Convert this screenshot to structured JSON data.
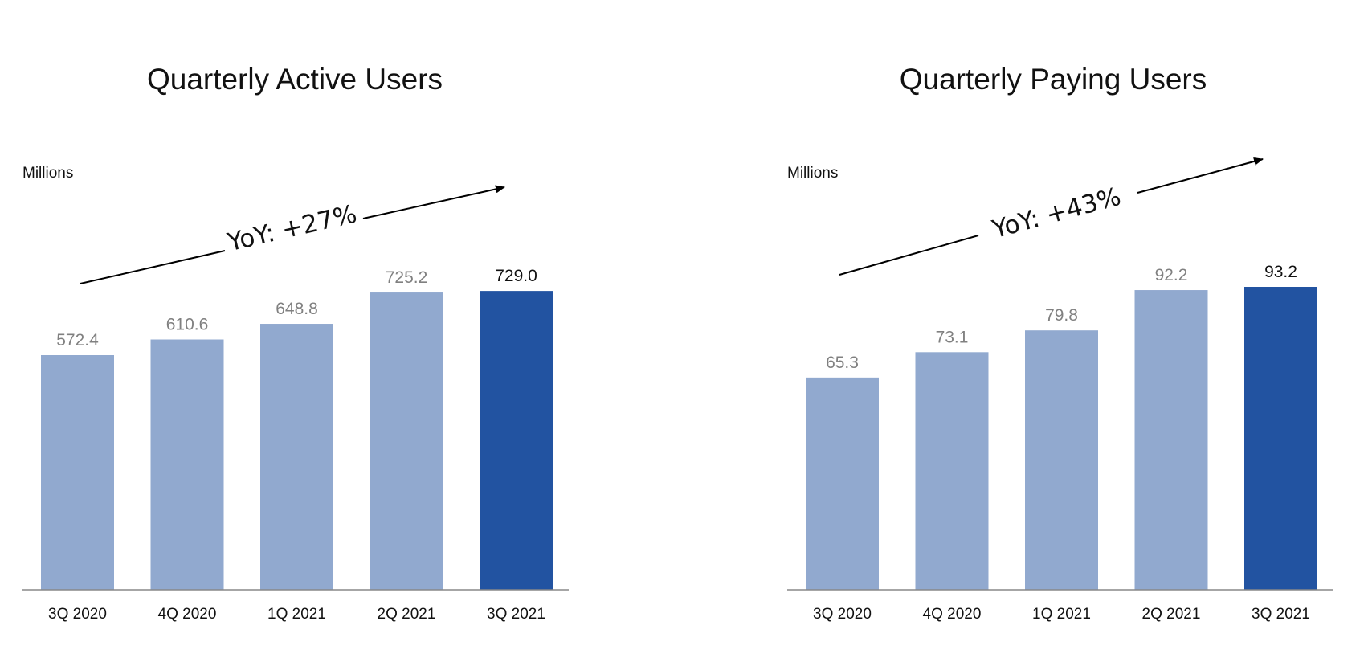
{
  "chart_data": [
    {
      "type": "bar",
      "title": "Quarterly Active Users",
      "ylabel": "Millions",
      "categories": [
        "3Q 2020",
        "4Q 2020",
        "1Q 2021",
        "2Q 2021",
        "3Q 2021"
      ],
      "values": [
        572.4,
        610.6,
        648.8,
        725.2,
        729.0
      ],
      "value_labels": [
        "572.4",
        "610.6",
        "648.8",
        "725.2",
        "729.0"
      ],
      "annotation": "YoY: +27%",
      "ylim": [
        0,
        800
      ],
      "grid": false,
      "colors": {
        "bar": "#91a9cf",
        "highlight": "#2253a1",
        "label": "#808080",
        "highlight_label": "#111111",
        "axis": "#888888"
      }
    },
    {
      "type": "bar",
      "title": "Quarterly Paying Users",
      "ylabel": "Millions",
      "categories": [
        "3Q 2020",
        "4Q 2020",
        "1Q 2021",
        "2Q 2021",
        "3Q 2021"
      ],
      "values": [
        65.3,
        73.1,
        79.8,
        92.2,
        93.2
      ],
      "value_labels": [
        "65.3",
        "73.1",
        "79.8",
        "92.2",
        "93.2"
      ],
      "annotation": "YoY: +43%",
      "ylim": [
        0,
        100
      ],
      "grid": false,
      "colors": {
        "bar": "#91a9cf",
        "highlight": "#2253a1",
        "label": "#808080",
        "highlight_label": "#111111",
        "axis": "#888888"
      }
    }
  ]
}
